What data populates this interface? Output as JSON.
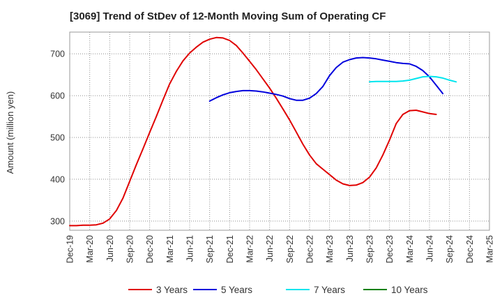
{
  "chart_data": {
    "type": "line",
    "title": "[3069]  Trend of StDev of 12-Month Moving Sum of Operating CF",
    "xlabel": "",
    "ylabel": "Amount (million yen)",
    "x_tick_labels": [
      "Dec-19",
      "Mar-20",
      "Jun-20",
      "Sep-20",
      "Dec-20",
      "Mar-21",
      "Jun-21",
      "Sep-21",
      "Dec-21",
      "Mar-22",
      "Jun-22",
      "Sep-22",
      "Dec-22",
      "Mar-23",
      "Jun-23",
      "Sep-23",
      "Dec-23",
      "Mar-24",
      "Jun-24",
      "Sep-24",
      "Dec-24",
      "Mar-25"
    ],
    "y_ticks": [
      300,
      400,
      500,
      600,
      700
    ],
    "ylim": [
      278,
      752
    ],
    "grid": true,
    "legend_position": "bottom",
    "series": [
      {
        "name": "3 Years",
        "color": "#e00000",
        "values": [
          289,
          289,
          290,
          290,
          291,
          295,
          305,
          325,
          355,
          395,
          435,
          473,
          512,
          550,
          590,
          628,
          658,
          683,
          702,
          716,
          728,
          735,
          739,
          738,
          732,
          720,
          702,
          682,
          662,
          640,
          618,
          594,
          568,
          542,
          513,
          484,
          458,
          437,
          424,
          411,
          398,
          389,
          385,
          386,
          392,
          405,
          427,
          458,
          494,
          533,
          555,
          564,
          565,
          561,
          557,
          555
        ]
      },
      {
        "name": "5 Years",
        "color": "#0000dd",
        "start_index": 21,
        "values": [
          587,
          595,
          602,
          607,
          610,
          612,
          612,
          611,
          609,
          606,
          603,
          599,
          593,
          589,
          589,
          594,
          605,
          622,
          648,
          667,
          680,
          686,
          690,
          691,
          690,
          688,
          685,
          682,
          679,
          677,
          676,
          670,
          660,
          645,
          625,
          605
        ]
      },
      {
        "name": "7 Years",
        "color": "#00e5ee",
        "start_index": 45,
        "values": [
          633,
          634,
          634,
          634,
          634,
          635,
          637,
          641,
          645,
          646,
          645,
          642,
          637,
          633
        ]
      },
      {
        "name": "10 Years",
        "color": "#008000",
        "values": []
      }
    ]
  }
}
